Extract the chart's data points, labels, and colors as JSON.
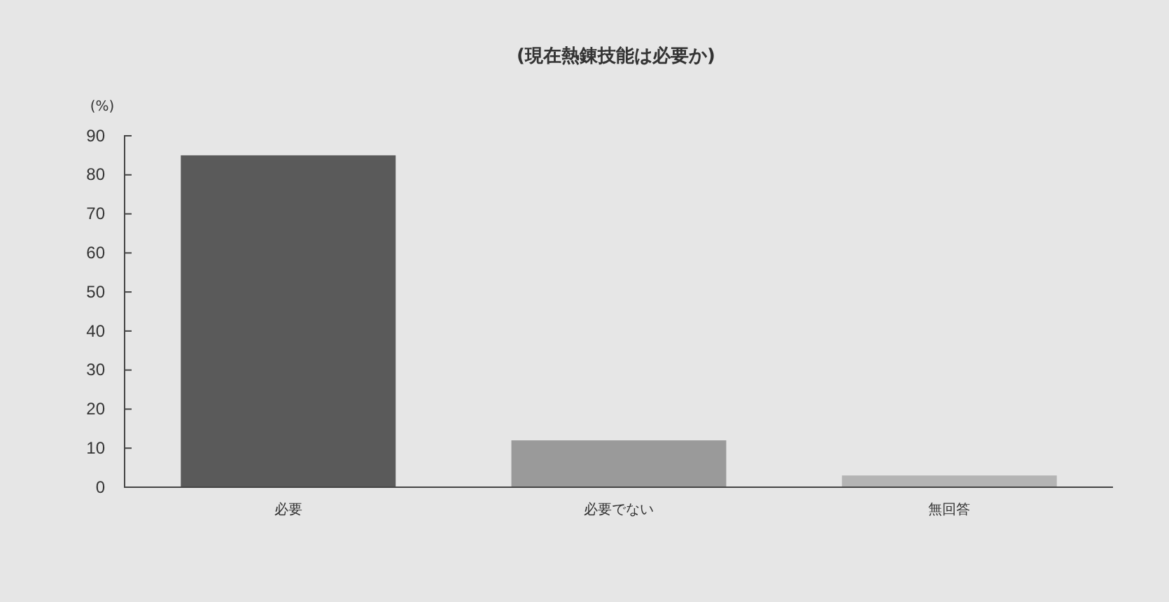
{
  "chart_data": {
    "type": "bar",
    "title": "(現在熱錬技能は必要か)",
    "ylabel": "(%)",
    "categories": [
      "必要",
      "必要でない",
      "無回答"
    ],
    "values": [
      85,
      12,
      3
    ],
    "colors": [
      "#5a5a5a",
      "#9a9a9a",
      "#b4b4b4"
    ],
    "ylim": [
      0,
      90
    ],
    "yticks": [
      0,
      10,
      20,
      30,
      40,
      50,
      60,
      70,
      80,
      90
    ],
    "grid": false
  }
}
